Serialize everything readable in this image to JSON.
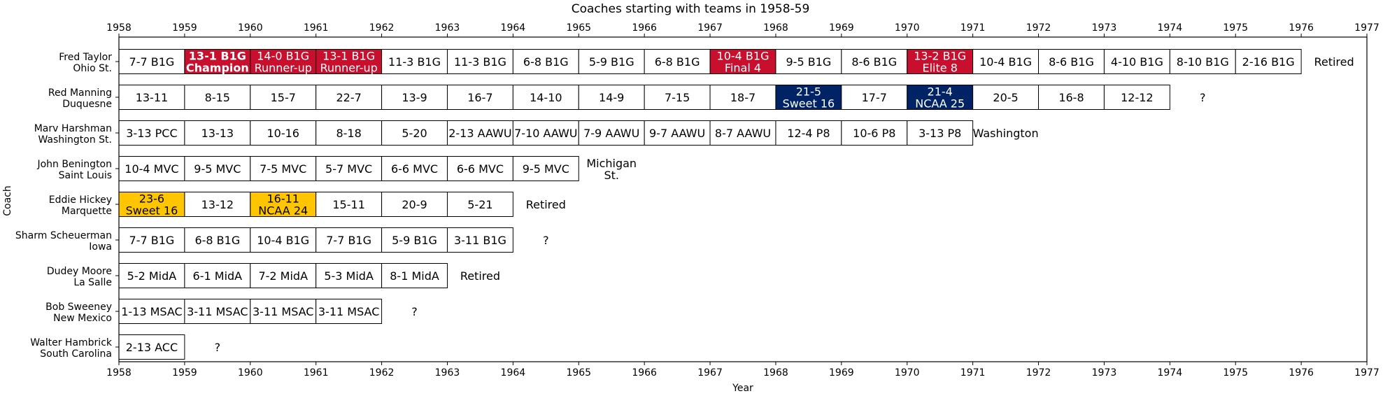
{
  "chart_data": {
    "type": "timeline",
    "title": "Coaches starting with teams in 1958-59",
    "xlabel": "Year",
    "ylabel": "Coach",
    "xlim": [
      1958,
      1977
    ],
    "xticks": [
      "1958",
      "1959",
      "1960",
      "1961",
      "1962",
      "1963",
      "1964",
      "1965",
      "1966",
      "1967",
      "1968",
      "1969",
      "1970",
      "1971",
      "1972",
      "1973",
      "1974",
      "1975",
      "1976",
      "1977"
    ],
    "colors": {
      "default": "#ffffff",
      "big_ten": "#c8102e",
      "duquesne": "#002366",
      "marquette": "#ffc600",
      "border": "#000000"
    },
    "rows": [
      {
        "coach": "Fred Taylor",
        "team": "Ohio St.",
        "after": "Retired",
        "seasons": [
          {
            "year": 1958,
            "label": [
              "7-7 B1G"
            ],
            "style": "default"
          },
          {
            "year": 1959,
            "label": [
              "13-1 B1G",
              "Champion"
            ],
            "style": "big_ten",
            "bold": true
          },
          {
            "year": 1960,
            "label": [
              "14-0 B1G",
              "Runner-up"
            ],
            "style": "big_ten"
          },
          {
            "year": 1961,
            "label": [
              "13-1 B1G",
              "Runner-up"
            ],
            "style": "big_ten"
          },
          {
            "year": 1962,
            "label": [
              "11-3 B1G"
            ],
            "style": "default"
          },
          {
            "year": 1963,
            "label": [
              "11-3 B1G"
            ],
            "style": "default"
          },
          {
            "year": 1964,
            "label": [
              "6-8 B1G"
            ],
            "style": "default"
          },
          {
            "year": 1965,
            "label": [
              "5-9 B1G"
            ],
            "style": "default"
          },
          {
            "year": 1966,
            "label": [
              "6-8 B1G"
            ],
            "style": "default"
          },
          {
            "year": 1967,
            "label": [
              "10-4 B1G",
              "Final 4"
            ],
            "style": "big_ten"
          },
          {
            "year": 1968,
            "label": [
              "9-5 B1G"
            ],
            "style": "default"
          },
          {
            "year": 1969,
            "label": [
              "8-6 B1G"
            ],
            "style": "default"
          },
          {
            "year": 1970,
            "label": [
              "13-2 B1G",
              "Elite 8"
            ],
            "style": "big_ten"
          },
          {
            "year": 1971,
            "label": [
              "10-4 B1G"
            ],
            "style": "default"
          },
          {
            "year": 1972,
            "label": [
              "8-6 B1G"
            ],
            "style": "default"
          },
          {
            "year": 1973,
            "label": [
              "4-10 B1G"
            ],
            "style": "default"
          },
          {
            "year": 1974,
            "label": [
              "8-10 B1G"
            ],
            "style": "default"
          },
          {
            "year": 1975,
            "label": [
              "2-16 B1G"
            ],
            "style": "default"
          }
        ]
      },
      {
        "coach": "Red Manning",
        "team": "Duquesne",
        "after": "?",
        "seasons": [
          {
            "year": 1958,
            "label": [
              "13-11"
            ],
            "style": "default"
          },
          {
            "year": 1959,
            "label": [
              "8-15"
            ],
            "style": "default"
          },
          {
            "year": 1960,
            "label": [
              "15-7"
            ],
            "style": "default"
          },
          {
            "year": 1961,
            "label": [
              "22-7"
            ],
            "style": "default"
          },
          {
            "year": 1962,
            "label": [
              "13-9"
            ],
            "style": "default"
          },
          {
            "year": 1963,
            "label": [
              "16-7"
            ],
            "style": "default"
          },
          {
            "year": 1964,
            "label": [
              "14-10"
            ],
            "style": "default"
          },
          {
            "year": 1965,
            "label": [
              "14-9"
            ],
            "style": "default"
          },
          {
            "year": 1966,
            "label": [
              "7-15"
            ],
            "style": "default"
          },
          {
            "year": 1967,
            "label": [
              "18-7"
            ],
            "style": "default"
          },
          {
            "year": 1968,
            "label": [
              "21-5",
              "Sweet 16"
            ],
            "style": "duquesne"
          },
          {
            "year": 1969,
            "label": [
              "17-7"
            ],
            "style": "default"
          },
          {
            "year": 1970,
            "label": [
              "21-4",
              "NCAA 25"
            ],
            "style": "duquesne"
          },
          {
            "year": 1971,
            "label": [
              "20-5"
            ],
            "style": "default"
          },
          {
            "year": 1972,
            "label": [
              "16-8"
            ],
            "style": "default"
          },
          {
            "year": 1973,
            "label": [
              "12-12"
            ],
            "style": "default"
          }
        ]
      },
      {
        "coach": "Marv Harshman",
        "team": "Washington St.",
        "after": "Washington",
        "seasons": [
          {
            "year": 1958,
            "label": [
              "3-13 PCC"
            ],
            "style": "default"
          },
          {
            "year": 1959,
            "label": [
              "13-13"
            ],
            "style": "default"
          },
          {
            "year": 1960,
            "label": [
              "10-16"
            ],
            "style": "default"
          },
          {
            "year": 1961,
            "label": [
              "8-18"
            ],
            "style": "default"
          },
          {
            "year": 1962,
            "label": [
              "5-20"
            ],
            "style": "default"
          },
          {
            "year": 1963,
            "label": [
              "2-13 AAWU"
            ],
            "style": "default"
          },
          {
            "year": 1964,
            "label": [
              "7-10 AAWU"
            ],
            "style": "default"
          },
          {
            "year": 1965,
            "label": [
              "7-9 AAWU"
            ],
            "style": "default"
          },
          {
            "year": 1966,
            "label": [
              "9-7 AAWU"
            ],
            "style": "default"
          },
          {
            "year": 1967,
            "label": [
              "8-7 AAWU"
            ],
            "style": "default"
          },
          {
            "year": 1968,
            "label": [
              "12-4 P8"
            ],
            "style": "default"
          },
          {
            "year": 1969,
            "label": [
              "10-6 P8"
            ],
            "style": "default"
          },
          {
            "year": 1970,
            "label": [
              "3-13 P8"
            ],
            "style": "default"
          }
        ]
      },
      {
        "coach": "John Benington",
        "team": "Saint Louis",
        "after": "Michigan St.",
        "seasons": [
          {
            "year": 1958,
            "label": [
              "10-4 MVC"
            ],
            "style": "default"
          },
          {
            "year": 1959,
            "label": [
              "9-5 MVC"
            ],
            "style": "default"
          },
          {
            "year": 1960,
            "label": [
              "7-5 MVC"
            ],
            "style": "default"
          },
          {
            "year": 1961,
            "label": [
              "5-7 MVC"
            ],
            "style": "default"
          },
          {
            "year": 1962,
            "label": [
              "6-6 MVC"
            ],
            "style": "default"
          },
          {
            "year": 1963,
            "label": [
              "6-6 MVC"
            ],
            "style": "default"
          },
          {
            "year": 1964,
            "label": [
              "9-5 MVC"
            ],
            "style": "default"
          }
        ]
      },
      {
        "coach": "Eddie Hickey",
        "team": "Marquette",
        "after": "Retired",
        "seasons": [
          {
            "year": 1958,
            "label": [
              "23-6",
              "Sweet 16"
            ],
            "style": "marquette"
          },
          {
            "year": 1959,
            "label": [
              "13-12"
            ],
            "style": "default"
          },
          {
            "year": 1960,
            "label": [
              "16-11",
              "NCAA 24"
            ],
            "style": "marquette"
          },
          {
            "year": 1961,
            "label": [
              "15-11"
            ],
            "style": "default"
          },
          {
            "year": 1962,
            "label": [
              "20-9"
            ],
            "style": "default"
          },
          {
            "year": 1963,
            "label": [
              "5-21"
            ],
            "style": "default"
          }
        ]
      },
      {
        "coach": "Sharm Scheuerman",
        "team": "Iowa",
        "after": "?",
        "seasons": [
          {
            "year": 1958,
            "label": [
              "7-7 B1G"
            ],
            "style": "default"
          },
          {
            "year": 1959,
            "label": [
              "6-8 B1G"
            ],
            "style": "default"
          },
          {
            "year": 1960,
            "label": [
              "10-4 B1G"
            ],
            "style": "default"
          },
          {
            "year": 1961,
            "label": [
              "7-7 B1G"
            ],
            "style": "default"
          },
          {
            "year": 1962,
            "label": [
              "5-9 B1G"
            ],
            "style": "default"
          },
          {
            "year": 1963,
            "label": [
              "3-11 B1G"
            ],
            "style": "default"
          }
        ]
      },
      {
        "coach": "Dudey Moore",
        "team": "La Salle",
        "after": "Retired",
        "seasons": [
          {
            "year": 1958,
            "label": [
              "5-2 MidA"
            ],
            "style": "default"
          },
          {
            "year": 1959,
            "label": [
              "6-1 MidA"
            ],
            "style": "default"
          },
          {
            "year": 1960,
            "label": [
              "7-2 MidA"
            ],
            "style": "default"
          },
          {
            "year": 1961,
            "label": [
              "5-3 MidA"
            ],
            "style": "default"
          },
          {
            "year": 1962,
            "label": [
              "8-1 MidA"
            ],
            "style": "default"
          }
        ]
      },
      {
        "coach": "Bob Sweeney",
        "team": "New Mexico",
        "after": "?",
        "seasons": [
          {
            "year": 1958,
            "label": [
              "1-13 MSAC"
            ],
            "style": "default"
          },
          {
            "year": 1959,
            "label": [
              "3-11 MSAC"
            ],
            "style": "default"
          },
          {
            "year": 1960,
            "label": [
              "3-11 MSAC"
            ],
            "style": "default"
          },
          {
            "year": 1961,
            "label": [
              "3-11 MSAC"
            ],
            "style": "default"
          }
        ]
      },
      {
        "coach": "Walter Hambrick",
        "team": "South Carolina",
        "after": "?",
        "seasons": [
          {
            "year": 1958,
            "label": [
              "2-13 ACC"
            ],
            "style": "default"
          }
        ]
      }
    ]
  }
}
